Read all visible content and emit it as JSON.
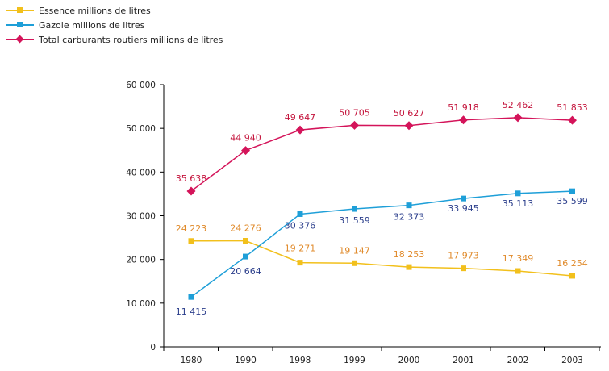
{
  "chart_data": {
    "type": "line",
    "title": "",
    "xlabel": "",
    "ylabel": "",
    "categories": [
      "1980",
      "1990",
      "1998",
      "1999",
      "2000",
      "2001",
      "2002",
      "2003"
    ],
    "ylim": [
      0,
      60000
    ],
    "yticks": [
      0,
      10000,
      20000,
      30000,
      40000,
      50000,
      60000
    ],
    "ytick_labels": [
      "0",
      "10 000",
      "20 000",
      "30 000",
      "40 000",
      "50 000",
      "60 000"
    ],
    "grid": false,
    "legend_position": "top-left",
    "series": [
      {
        "name": "Essence millions de litres",
        "color": "#f2c01c",
        "label_color": "#e08a2a",
        "marker": "square",
        "values": [
          24223,
          24276,
          19271,
          19147,
          18253,
          17973,
          17349,
          16254
        ],
        "labels": [
          "24 223",
          "24 276",
          "19 271",
          "19 147",
          "18 253",
          "17 973",
          "17 349",
          "16 254"
        ]
      },
      {
        "name": "Gazole millions de litres",
        "color": "#1e9fd8",
        "label_color": "#2c3f8c",
        "marker": "square",
        "values": [
          11415,
          20664,
          30376,
          31559,
          32373,
          33945,
          35113,
          35599
        ],
        "labels": [
          "11 415",
          "20 664",
          "30 376",
          "31 559",
          "32 373",
          "33 945",
          "35 113",
          "35 599"
        ]
      },
      {
        "name": "Total carburants routiers millions de litres",
        "color": "#d4145a",
        "label_color": "#c4143c",
        "marker": "diamond",
        "values": [
          35638,
          44940,
          49647,
          50705,
          50627,
          51918,
          52462,
          51853
        ],
        "labels": [
          "35 638",
          "44 940",
          "49 647",
          "50 705",
          "50 627",
          "51 918",
          "52 462",
          "51 853"
        ]
      }
    ]
  }
}
